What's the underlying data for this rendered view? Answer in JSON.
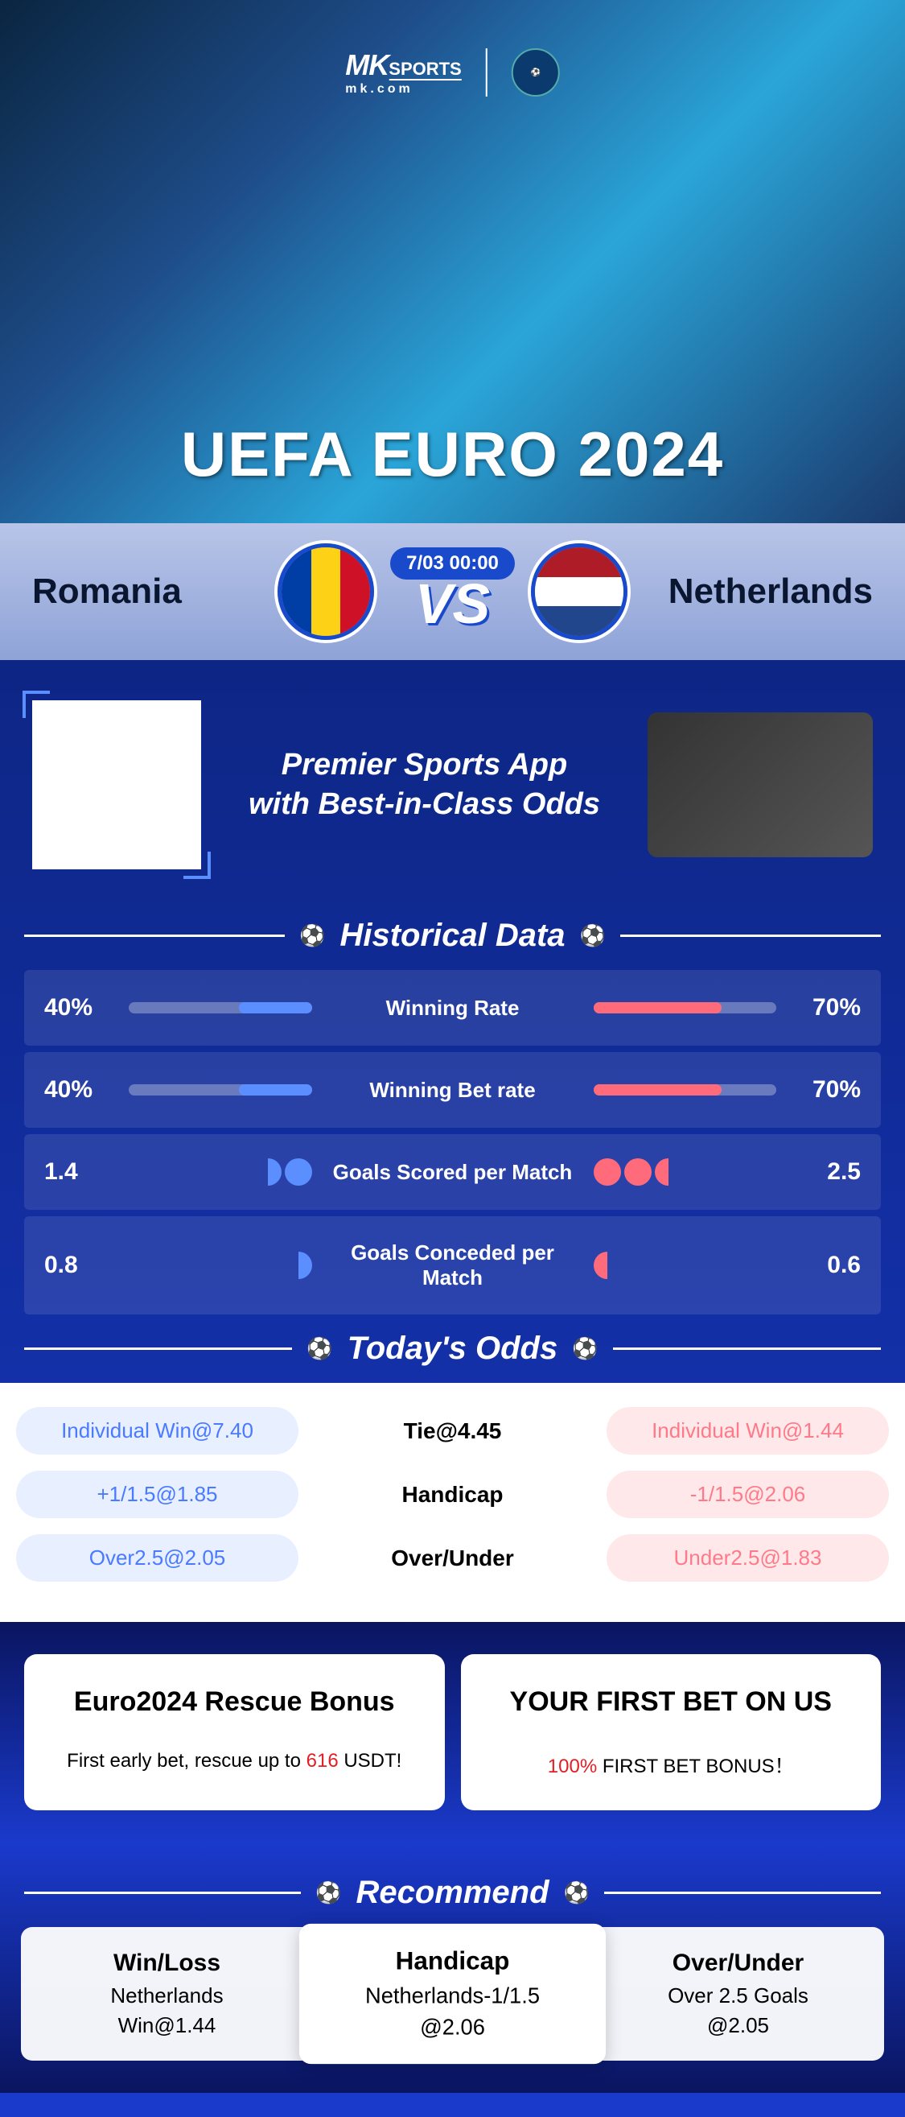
{
  "hero": {
    "logo_mk": "MK",
    "logo_sports": "SPORTS",
    "logo_sub": "mk.com",
    "title": "UEFA EURO 2024"
  },
  "match": {
    "team_left": "Romania",
    "team_right": "Netherlands",
    "date": "7/03 00:00",
    "vs": "VS",
    "flag_left_colors": [
      "#003da5",
      "#fcd116",
      "#ce1126"
    ],
    "flag_right_colors": [
      "#ae1c28",
      "#ffffff",
      "#21468b"
    ]
  },
  "promo": {
    "line1": "Premier Sports App",
    "line2": "with Best-in-Class Odds"
  },
  "historical": {
    "header": "Historical Data",
    "rows": [
      {
        "type": "bar",
        "left_value": "40%",
        "left_pct": 40,
        "label": "Winning Rate",
        "right_pct": 70,
        "right_value": "70%"
      },
      {
        "type": "bar",
        "left_value": "40%",
        "left_pct": 40,
        "label": "Winning Bet rate",
        "right_pct": 70,
        "right_value": "70%"
      },
      {
        "type": "balls",
        "left_value": "1.4",
        "label": "Goals Scored per Match",
        "right_value": "2.5"
      },
      {
        "type": "balls",
        "left_value": "0.8",
        "label": "Goals Conceded per Match",
        "right_value": "0.6"
      }
    ]
  },
  "odds": {
    "header": "Today's Odds",
    "rows": [
      {
        "left": "Individual Win@7.40",
        "center": "Tie@4.45",
        "right": "Individual Win@1.44"
      },
      {
        "left": "+1/1.5@1.85",
        "center": "Handicap",
        "right": "-1/1.5@2.06"
      },
      {
        "left": "Over2.5@2.05",
        "center": "Over/Under",
        "right": "Under2.5@1.83"
      }
    ]
  },
  "bonus": {
    "card1_title": "Euro2024 Rescue Bonus",
    "card1_text_pre": "First early bet, rescue up to ",
    "card1_amount": "616",
    "card1_text_post": " USDT!",
    "card2_title": "YOUR FIRST BET ON US",
    "card2_pct": "100%",
    "card2_text": " FIRST BET BONUS！"
  },
  "recommend": {
    "header": "Recommend",
    "cards": [
      {
        "title": "Win/Loss",
        "sub": "Netherlands",
        "odds": "Win@1.44"
      },
      {
        "title": "Handicap",
        "sub": "Netherlands-1/1.5",
        "odds": "@2.06"
      },
      {
        "title": "Over/Under",
        "sub": "Over 2.5 Goals",
        "odds": "@2.05"
      }
    ]
  },
  "colors": {
    "primary_blue": "#1a4acc",
    "accent_blue": "#5b8fff",
    "accent_red": "#ff6b7a",
    "bg_dark": "#0a1560"
  }
}
